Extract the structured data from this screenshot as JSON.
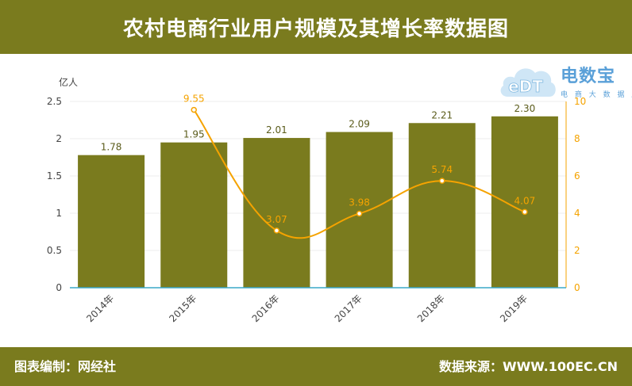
{
  "header": {
    "title": "农村电商行业用户规模及其增长率数据图"
  },
  "footer": {
    "left": "图表编制：网经社",
    "right": "数据来源：WWW.100EC.CN"
  },
  "logo": {
    "title": "电数宝",
    "subtitle": "电 商 大 数 据 库",
    "mark": "eDT"
  },
  "colors": {
    "header_bg": "#7a7b1e",
    "bar": "#7a7b1e",
    "line": "#f5a300",
    "bar_label": "#5a5b1a"
  },
  "chart_data": {
    "type": "bar",
    "title": "农村电商行业用户规模及其增长率数据图",
    "categories": [
      "2014年",
      "2015年",
      "2016年",
      "2017年",
      "2018年",
      "2019年"
    ],
    "ylabel": "亿人",
    "ylim": [
      0,
      2.5
    ],
    "yticks": [
      "0",
      "0.5",
      "1",
      "1.5",
      "2",
      "2.5"
    ],
    "y2lim": [
      0,
      10
    ],
    "y2ticks": [
      "0",
      "2",
      "4",
      "6",
      "8",
      "10"
    ],
    "grid": true,
    "series": [
      {
        "type": "bar",
        "values": [
          1.78,
          1.95,
          2.01,
          2.09,
          2.21,
          2.3
        ],
        "labels": [
          "1.78",
          "1.95",
          "2.01",
          "2.09",
          "2.21",
          "2.30"
        ]
      },
      {
        "type": "line",
        "axis": "right",
        "values": [
          null,
          9.55,
          3.07,
          3.98,
          5.74,
          4.07
        ],
        "labels": [
          "",
          "9.55",
          "3.07",
          "3.98",
          "5.74",
          "4.07"
        ]
      }
    ]
  }
}
